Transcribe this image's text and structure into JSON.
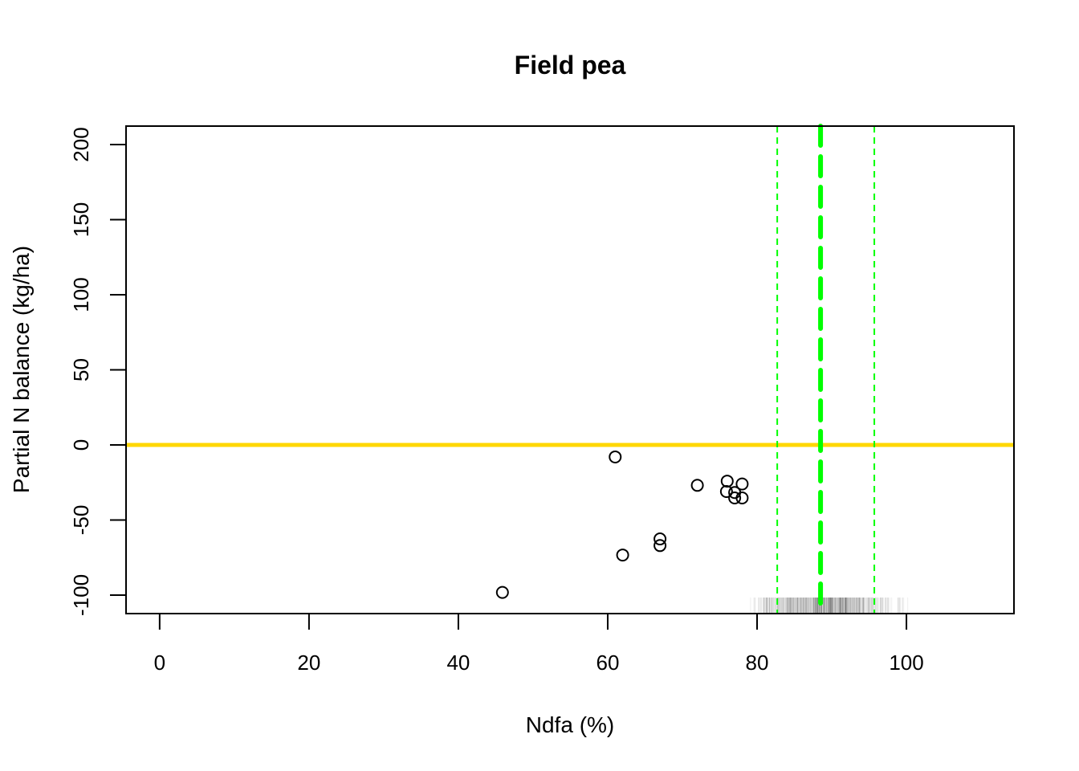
{
  "chart_data": {
    "type": "scatter",
    "title": "Field pea",
    "xlabel": "Ndfa (%)",
    "ylabel": "Partial N balance (kg/ha)",
    "xlim": [
      -4.5,
      114.4
    ],
    "ylim": [
      -112.3,
      212.3
    ],
    "xticks": [
      0,
      20,
      40,
      60,
      80,
      100
    ],
    "yticks": [
      -100,
      -50,
      0,
      50,
      100,
      150,
      200
    ],
    "grid": false,
    "points": [
      {
        "x": 45.9,
        "y": -98.2
      },
      {
        "x": 61.0,
        "y": -8.0
      },
      {
        "x": 62.0,
        "y": -73.3
      },
      {
        "x": 67.0,
        "y": -62.6
      },
      {
        "x": 67.0,
        "y": -67.0
      },
      {
        "x": 72.0,
        "y": -26.9
      },
      {
        "x": 76.0,
        "y": -24.1
      },
      {
        "x": 75.9,
        "y": -31.0
      },
      {
        "x": 77.0,
        "y": -31.7
      },
      {
        "x": 77.0,
        "y": -35.3
      },
      {
        "x": 78.0,
        "y": -26.0
      },
      {
        "x": 78.0,
        "y": -35.3
      }
    ],
    "hline": {
      "y": 0,
      "color": "#FFD700"
    },
    "vlines": [
      {
        "x": 82.7,
        "style": "dashed-thin",
        "color": "#00FF00"
      },
      {
        "x": 88.5,
        "style": "dashed-thick",
        "color": "#00FF00"
      },
      {
        "x": 95.7,
        "style": "dashed-thin",
        "color": "#00FF00"
      }
    ],
    "rug": {
      "center": 88.5,
      "range": [
        78.5,
        106
      ],
      "color": "#000000"
    }
  }
}
